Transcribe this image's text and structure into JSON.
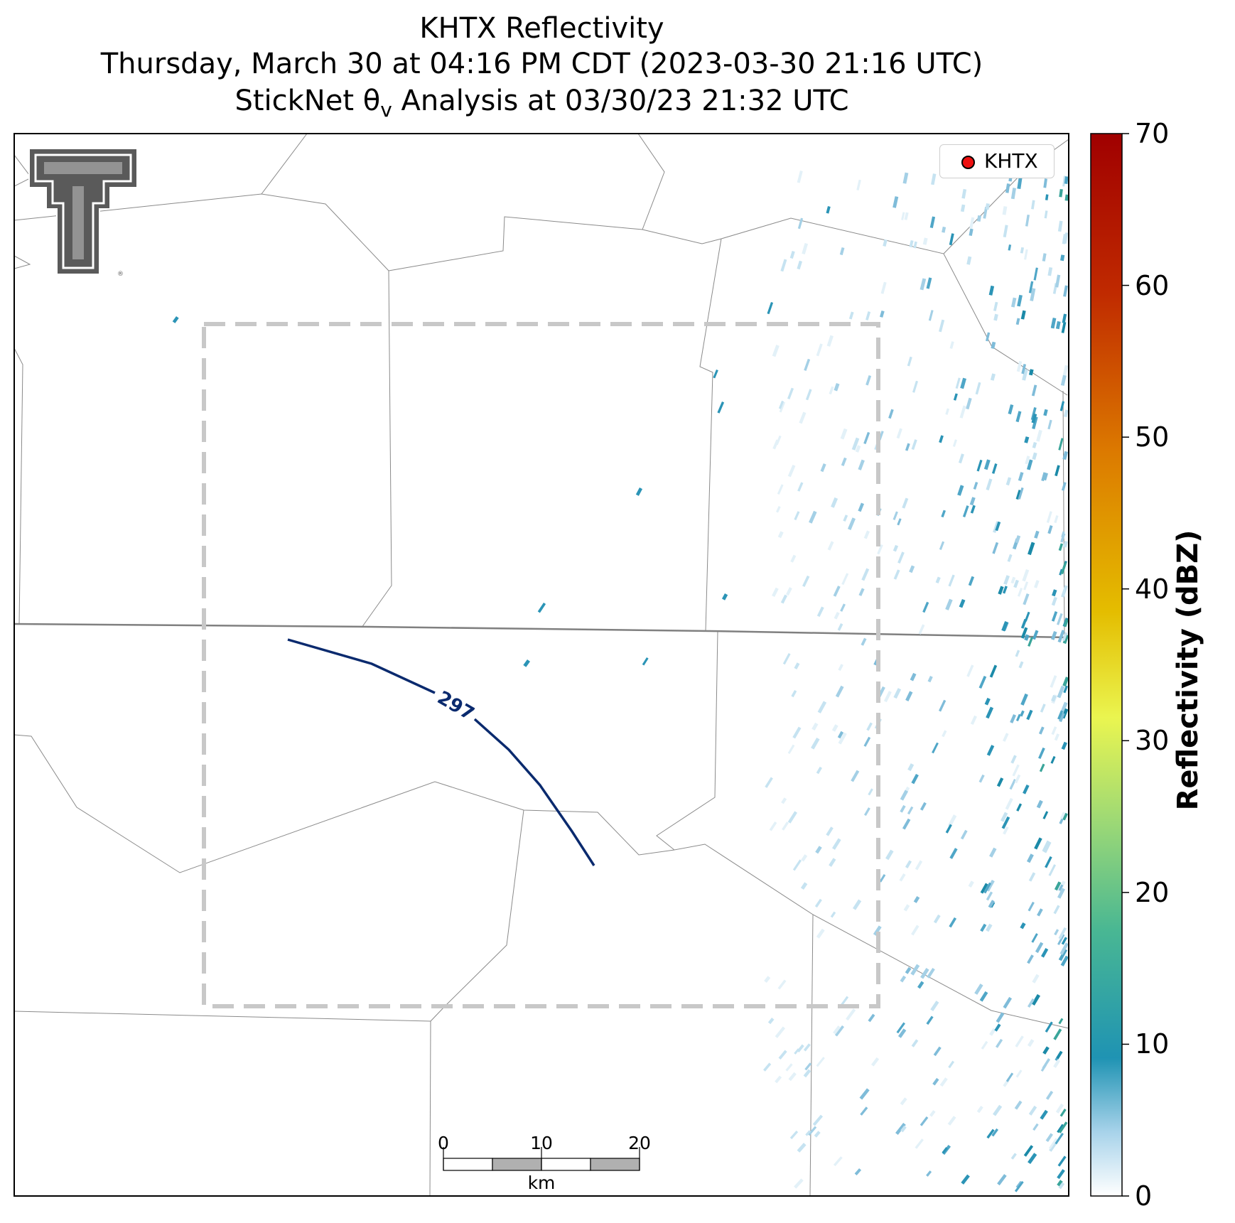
{
  "header": {
    "title_line1": "KHTX Reflectivity",
    "title_line2": "Thursday, March 30 at 04:16 PM CDT (2023-03-30 21:16 UTC)",
    "title_line3": "StickNet θ",
    "title_line3_sub": "v",
    "title_line3_rest": " Analysis at 03/30/23 21:32 UTC"
  },
  "legend": {
    "label": "KHTX",
    "marker_color": "#ee1111"
  },
  "colorbar": {
    "label": "Reflectivity (dBZ)",
    "ticks": [
      "0",
      "10",
      "20",
      "30",
      "40",
      "50",
      "60",
      "70"
    ],
    "range": [
      0,
      70
    ]
  },
  "contour": {
    "label": "297",
    "color": "#0a2a6e"
  },
  "scale_bar": {
    "ticks": [
      "0",
      "10",
      "20"
    ],
    "unit": "km"
  },
  "logo": {
    "name": "texas-tech-double-t-logo",
    "color": "#5a5a5a"
  },
  "analysis_box": {
    "style": "dashed",
    "color": "#c8c8c8"
  }
}
